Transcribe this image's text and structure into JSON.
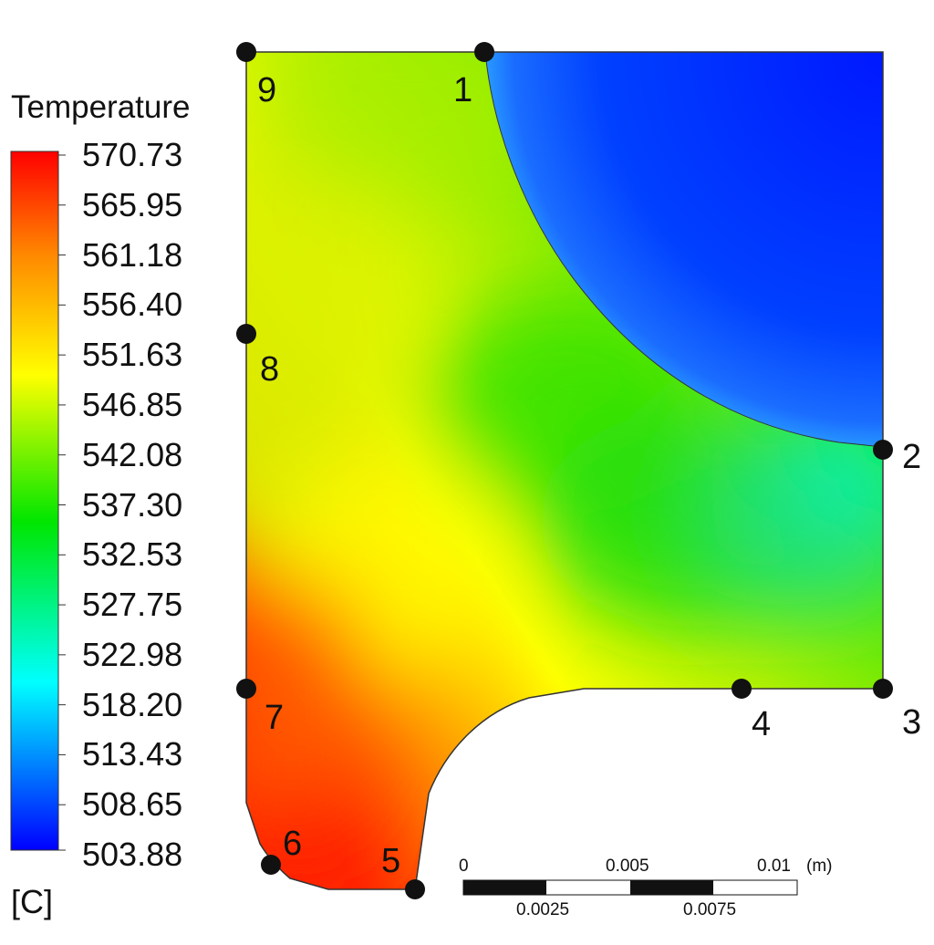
{
  "legend": {
    "title": "Temperature",
    "unit": "[C]",
    "max": 570.73,
    "min": 503.88,
    "ticks": [
      "570.73",
      "565.95",
      "561.18",
      "556.40",
      "551.63",
      "546.85",
      "542.08",
      "537.30",
      "532.53",
      "527.75",
      "522.98",
      "518.20",
      "513.43",
      "508.65",
      "503.88"
    ],
    "colormap": [
      "#ff0000",
      "#ff8a00",
      "#ffff00",
      "#00e600",
      "#00ffff",
      "#0000ff"
    ]
  },
  "nodes": [
    "1",
    "2",
    "3",
    "4",
    "5",
    "6",
    "7",
    "8",
    "9"
  ],
  "scale_bar": {
    "top_labels": [
      "0",
      "0.005",
      "0.01"
    ],
    "unit": "(m)",
    "bottom_labels": [
      "0.0025",
      "0.0075"
    ]
  }
}
